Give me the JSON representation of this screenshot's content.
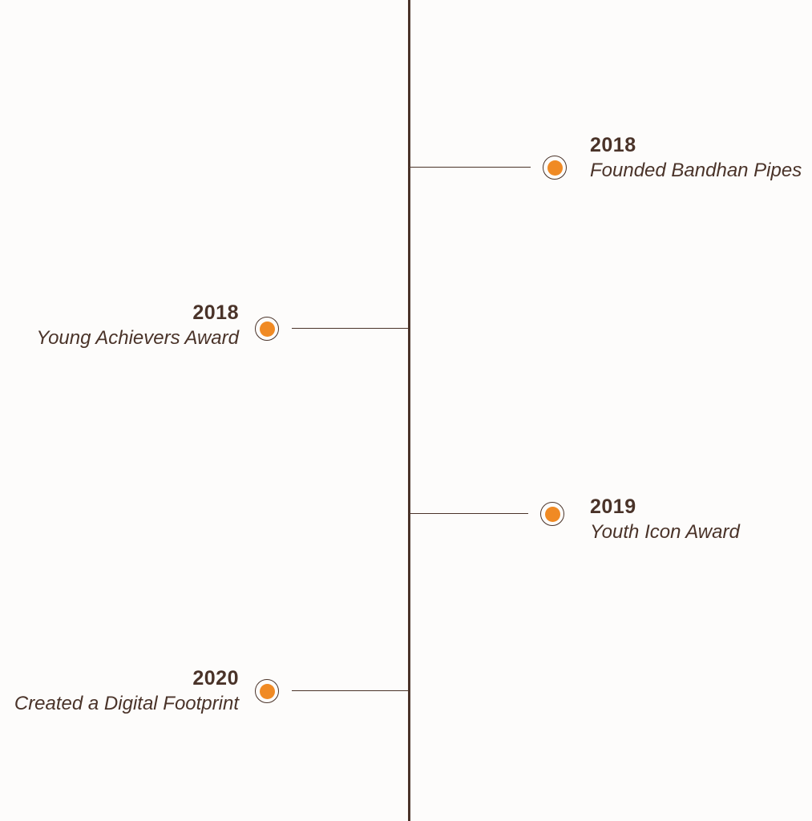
{
  "timeline": {
    "colors": {
      "line": "#4a3329",
      "dot": "#f08a24",
      "text": "#4a3329"
    },
    "events": [
      {
        "year": "2018",
        "description": "Founded Bandhan Pipes",
        "side": "right"
      },
      {
        "year": "2018",
        "description": "Young Achievers Award",
        "side": "left"
      },
      {
        "year": "2019",
        "description": "Youth Icon Award",
        "side": "right"
      },
      {
        "year": "2020",
        "description": "Created a Digital Footprint",
        "side": "left"
      }
    ]
  }
}
